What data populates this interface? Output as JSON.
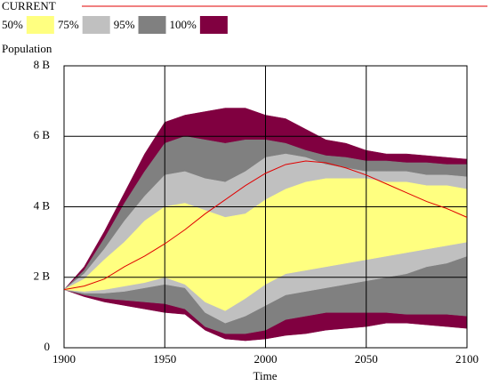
{
  "chart_data": {
    "type": "band",
    "legend_title": "CURRENT",
    "y_label": "Population",
    "x_label": "Time",
    "x": [
      1900,
      1910,
      1920,
      1930,
      1940,
      1950,
      1960,
      1970,
      1980,
      1990,
      2000,
      2010,
      2020,
      2030,
      2040,
      2050,
      2060,
      2070,
      2080,
      2090,
      2100
    ],
    "series": [
      {
        "name": "CURRENT",
        "color": "#e00000",
        "values": [
          1.65,
          1.75,
          1.95,
          2.3,
          2.6,
          2.95,
          3.35,
          3.8,
          4.2,
          4.6,
          4.95,
          5.2,
          5.3,
          5.25,
          5.1,
          4.9,
          4.65,
          4.4,
          4.15,
          3.95,
          3.7
        ]
      }
    ],
    "bands": [
      {
        "name": "50%",
        "color": "#ffff80",
        "upper": [
          1.65,
          1.95,
          2.5,
          3.0,
          3.6,
          4.0,
          4.1,
          3.9,
          3.7,
          3.8,
          4.2,
          4.5,
          4.7,
          4.8,
          4.8,
          4.8,
          4.7,
          4.7,
          4.6,
          4.6,
          4.5
        ],
        "lower": [
          1.65,
          1.6,
          1.65,
          1.75,
          1.85,
          2.0,
          1.8,
          1.3,
          1.05,
          1.4,
          1.8,
          2.1,
          2.2,
          2.3,
          2.4,
          2.5,
          2.6,
          2.7,
          2.8,
          2.9,
          3.0
        ]
      },
      {
        "name": "75%",
        "color": "#c0c0c0",
        "upper": [
          1.65,
          2.1,
          2.8,
          3.6,
          4.3,
          4.9,
          5.0,
          4.8,
          4.7,
          5.0,
          5.4,
          5.5,
          5.4,
          5.2,
          5.1,
          5.0,
          5.0,
          5.0,
          4.9,
          4.9,
          4.85
        ],
        "lower": [
          1.65,
          1.55,
          1.55,
          1.6,
          1.7,
          1.8,
          1.7,
          1.0,
          0.7,
          0.9,
          1.2,
          1.5,
          1.6,
          1.7,
          1.8,
          1.9,
          2.0,
          2.1,
          2.3,
          2.4,
          2.6
        ]
      },
      {
        "name": "95%",
        "color": "#808080",
        "upper": [
          1.65,
          2.2,
          3.1,
          4.1,
          5.0,
          5.8,
          6.0,
          5.9,
          5.8,
          5.9,
          5.9,
          5.8,
          5.6,
          5.45,
          5.4,
          5.3,
          5.3,
          5.25,
          5.25,
          5.2,
          5.2
        ],
        "lower": [
          1.65,
          1.5,
          1.4,
          1.35,
          1.3,
          1.25,
          1.1,
          0.6,
          0.4,
          0.4,
          0.5,
          0.8,
          0.9,
          1.0,
          1.0,
          1.0,
          1.0,
          0.95,
          0.95,
          0.95,
          0.9
        ]
      },
      {
        "name": "100%",
        "color": "#800040",
        "upper": [
          1.65,
          2.3,
          3.3,
          4.4,
          5.5,
          6.4,
          6.6,
          6.7,
          6.8,
          6.8,
          6.6,
          6.5,
          6.2,
          5.9,
          5.8,
          5.6,
          5.5,
          5.5,
          5.45,
          5.4,
          5.35
        ],
        "lower": [
          1.65,
          1.45,
          1.3,
          1.2,
          1.1,
          1.0,
          0.95,
          0.5,
          0.25,
          0.2,
          0.25,
          0.35,
          0.4,
          0.5,
          0.55,
          0.6,
          0.7,
          0.7,
          0.65,
          0.6,
          0.55
        ]
      }
    ],
    "xlim": [
      1900,
      2100
    ],
    "xticks": [
      1900,
      1950,
      2000,
      2050,
      2100
    ],
    "ylim": [
      0,
      8
    ],
    "yticks": [
      0,
      {
        "value": 2,
        "label": "2 B"
      },
      {
        "value": 4,
        "label": "4 B"
      },
      {
        "value": 6,
        "label": "6 B"
      },
      {
        "value": 8,
        "label": "8 B"
      }
    ],
    "grid": true
  }
}
